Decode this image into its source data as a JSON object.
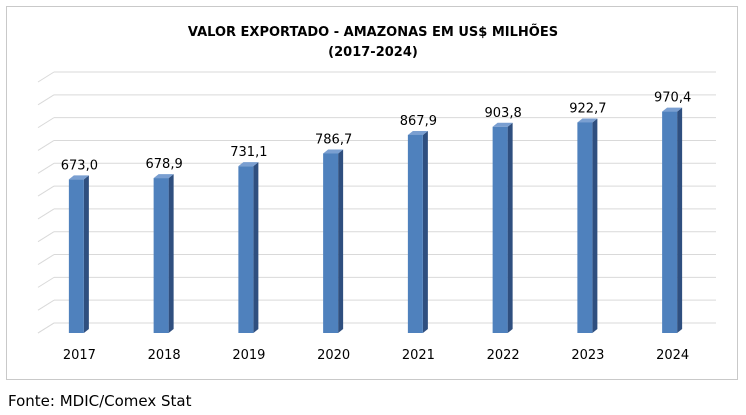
{
  "chart_data": {
    "type": "bar",
    "title": "VALOR EXPORTADO  - AMAZONAS EM US$ MILHÕES",
    "subtitle": "(2017-2024)",
    "categories": [
      "2017",
      "2018",
      "2019",
      "2020",
      "2021",
      "2022",
      "2023",
      "2024"
    ],
    "values": [
      673.0,
      678.9,
      731.1,
      786.7,
      867.9,
      903.8,
      922.7,
      970.4
    ],
    "value_labels": [
      "673,0",
      "678,9",
      "731,1",
      "786,7",
      "867,9",
      "903,8",
      "922,7",
      "970,4"
    ],
    "ylim": [
      0,
      1100
    ],
    "grid": true,
    "legend": "none",
    "bar_color": "#4f81bd"
  },
  "source": "Fonte: MDIC/Comex Stat"
}
